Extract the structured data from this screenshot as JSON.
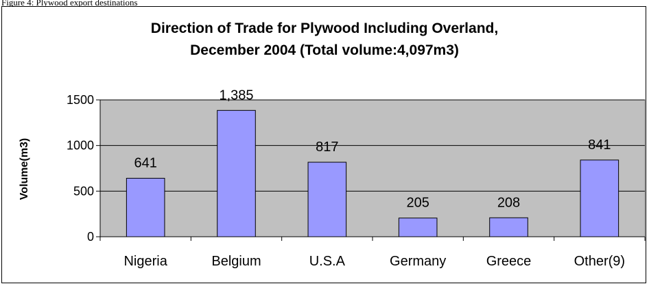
{
  "caption": "Figure 4: Plywood export destinations",
  "chart_data": {
    "type": "bar",
    "title_line1": "Direction of Trade for Plywood Including Overland,",
    "title_line2": "December 2004 (Total volume:4,097m3)",
    "ylabel": "Volume(m3)",
    "xlabel": "",
    "categories": [
      "Nigeria",
      "Belgium",
      "U.S.A",
      "Germany",
      "Greece",
      "Other(9)"
    ],
    "values": [
      641,
      1385,
      817,
      205,
      208,
      841
    ],
    "data_labels": [
      "641",
      "1,385",
      "817",
      "205",
      "208",
      "841"
    ],
    "ylim": [
      0,
      1500
    ],
    "yticks": [
      0,
      500,
      1000,
      1500
    ],
    "grid": true,
    "legend": "none",
    "colors": {
      "plot_bg": "#c0c0c0",
      "bar_fill": "#9999ff",
      "bar_stroke": "#000000",
      "grid": "#000000"
    }
  }
}
